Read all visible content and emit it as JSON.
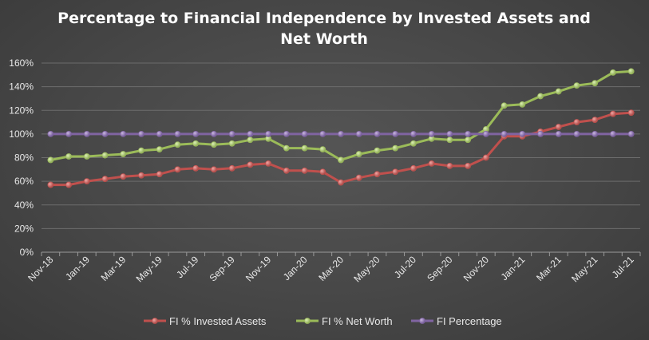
{
  "chart_data": {
    "type": "line",
    "title_lines": [
      "Percentage to Financial Independence by Invested Assets and",
      "Net Worth"
    ],
    "xlabel": "",
    "ylabel": "",
    "ylim": [
      0,
      160
    ],
    "y_ticks": [
      "0%",
      "20%",
      "40%",
      "60%",
      "80%",
      "100%",
      "120%",
      "140%",
      "160%"
    ],
    "x_tick_labels": [
      "Nov-18",
      "Jan-19",
      "Mar-19",
      "May-19",
      "Jul-19",
      "Sep-19",
      "Nov-19",
      "Jan-20",
      "Mar-20",
      "May-20",
      "Jul-20",
      "Sep-20",
      "Nov-20",
      "Jan-21",
      "Mar-21",
      "May-21",
      "Jul-21"
    ],
    "categories": [
      "Nov-18",
      "Dec-18",
      "Jan-19",
      "Feb-19",
      "Mar-19",
      "Apr-19",
      "May-19",
      "Jun-19",
      "Jul-19",
      "Aug-19",
      "Sep-19",
      "Oct-19",
      "Nov-19",
      "Dec-19",
      "Jan-20",
      "Feb-20",
      "Mar-20",
      "Apr-20",
      "May-20",
      "Jun-20",
      "Jul-20",
      "Aug-20",
      "Sep-20",
      "Oct-20",
      "Nov-20",
      "Dec-20",
      "Jan-21",
      "Feb-21",
      "Mar-21",
      "Apr-21",
      "May-21",
      "Jun-21",
      "Jul-21"
    ],
    "grid": true,
    "legend_position": "bottom",
    "series": [
      {
        "name": "FI % Invested Assets",
        "color": "#c0504d",
        "values": [
          57,
          57,
          60,
          62,
          64,
          65,
          66,
          70,
          71,
          70,
          71,
          74,
          75,
          69,
          69,
          68,
          59,
          63,
          66,
          68,
          71,
          75,
          73,
          73,
          80,
          98,
          98,
          102,
          106,
          110,
          112,
          117,
          118
        ]
      },
      {
        "name": "FI % Net Worth",
        "color": "#9bbb59",
        "values": [
          78,
          81,
          81,
          82,
          83,
          86,
          87,
          91,
          92,
          91,
          92,
          95,
          96,
          88,
          88,
          87,
          78,
          83,
          86,
          88,
          92,
          96,
          95,
          95,
          104,
          124,
          125,
          132,
          136,
          141,
          143,
          152,
          153
        ]
      },
      {
        "name": "FI Percentage",
        "color": "#8064a2",
        "values": [
          100,
          100,
          100,
          100,
          100,
          100,
          100,
          100,
          100,
          100,
          100,
          100,
          100,
          100,
          100,
          100,
          100,
          100,
          100,
          100,
          100,
          100,
          100,
          100,
          100,
          100,
          100,
          100,
          100,
          100,
          100,
          100,
          100
        ]
      }
    ]
  }
}
